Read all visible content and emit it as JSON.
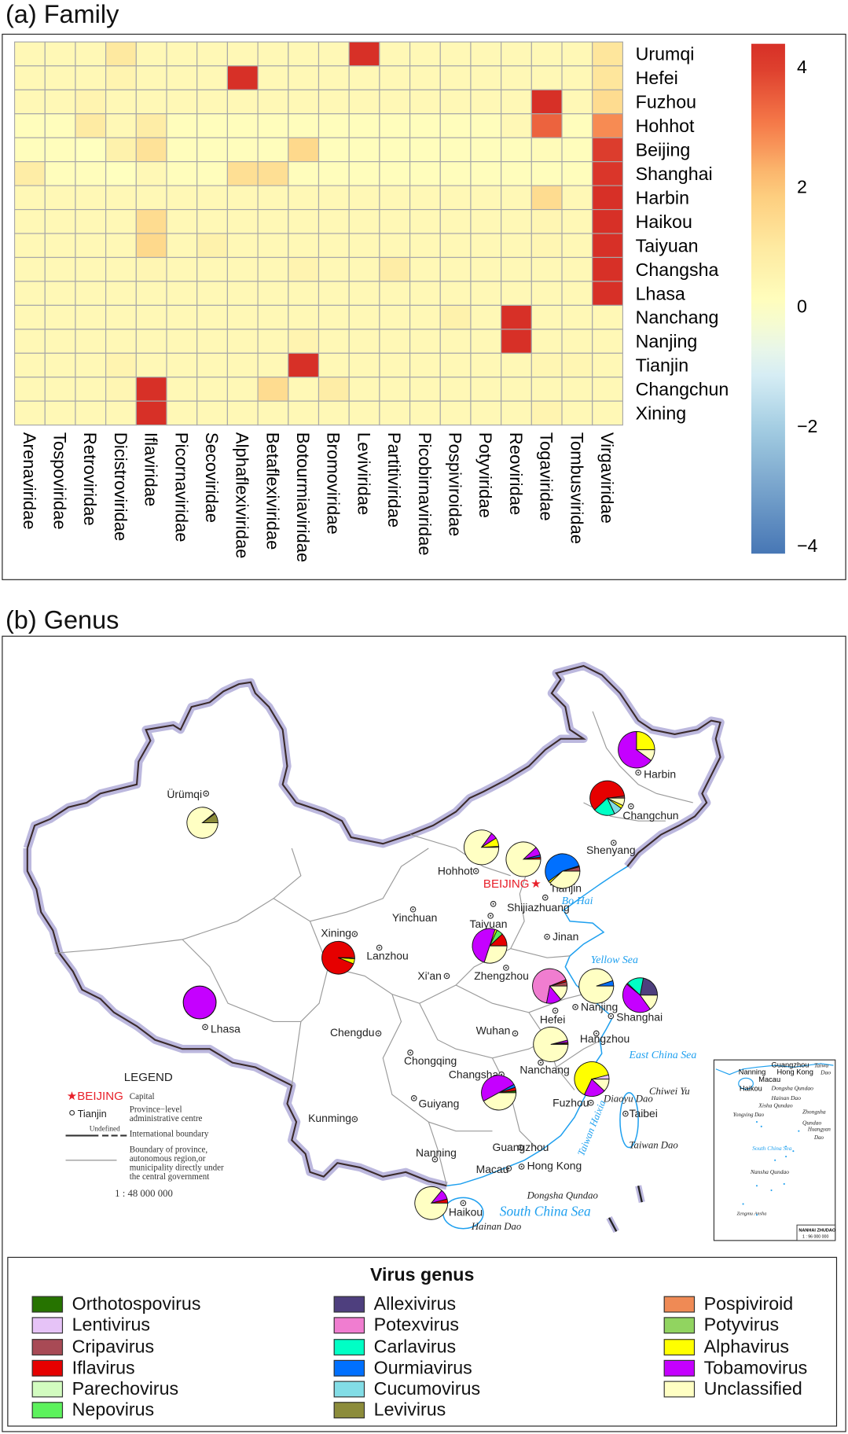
{
  "panel_a_title": "(a) Family",
  "panel_b_title": "(b) Genus",
  "chart_data": [
    {
      "type": "heatmap",
      "title": "(a) Family",
      "rows": [
        "Urumqi",
        "Hefei",
        "Fuzhou",
        "Hohhot",
        "Beijing",
        "Shanghai",
        "Harbin",
        "Haikou",
        "Taiyuan",
        "Changsha",
        "Lhasa",
        "Nanchang",
        "Nanjing",
        "Tianjin",
        "Changchun",
        "Xining"
      ],
      "columns": [
        "Arenaviridae",
        "Tospoviridae",
        "Retroviridae",
        "Dicistroviridae",
        "Iflaviridae",
        "Picornaviridae",
        "Secoviridae",
        "Alphaflexiviridae",
        "Betaflexiviridae",
        "Botourmiaviridae",
        "Bromoviridae",
        "Leviviridae",
        "Partitiviridae",
        "Picobirnaviridae",
        "Pospiviroidae",
        "Potyviridae",
        "Reoviridae",
        "Togaviridae",
        "Tombusviridae",
        "Virgaviridae"
      ],
      "values": [
        [
          0.3,
          0.3,
          0.3,
          1.0,
          0.3,
          0.3,
          0.3,
          0.3,
          0.3,
          0.3,
          0.3,
          4.3,
          0.3,
          0.3,
          0.3,
          0.3,
          0.3,
          0.3,
          0.3,
          1.1
        ],
        [
          0.3,
          0.3,
          0.3,
          0.5,
          0.3,
          0.3,
          0.3,
          4.3,
          0.3,
          0.3,
          0.3,
          0.3,
          0.3,
          0.3,
          0.3,
          0.3,
          0.3,
          0.3,
          0.3,
          1.1
        ],
        [
          0.3,
          0.3,
          0.5,
          0.3,
          0.3,
          0.3,
          0.3,
          0.3,
          0.3,
          0.3,
          0.3,
          0.3,
          0.3,
          0.3,
          0.3,
          0.3,
          0.3,
          4.3,
          0.3,
          1.4
        ],
        [
          0.1,
          0.1,
          0.9,
          0.3,
          0.8,
          0.1,
          0.1,
          0.1,
          0.1,
          0.1,
          0.1,
          0.1,
          0.1,
          0.1,
          0.1,
          0.1,
          0.3,
          3.4,
          0.1,
          2.8
        ],
        [
          0.1,
          0.1,
          0.0,
          0.6,
          1.2,
          0.1,
          0.1,
          0.1,
          0.1,
          1.5,
          0.1,
          0.1,
          0.1,
          0.1,
          0.1,
          0.1,
          0.1,
          0.2,
          0.1,
          4.0
        ],
        [
          0.8,
          0.1,
          0.1,
          0.0,
          0.3,
          0.1,
          0.1,
          1.3,
          1.3,
          0.1,
          0.1,
          0.1,
          0.1,
          0.1,
          0.1,
          0.1,
          0.1,
          0.1,
          0.1,
          4.1
        ],
        [
          0.3,
          0.3,
          0.3,
          0.3,
          0.3,
          0.3,
          0.3,
          0.3,
          0.3,
          0.3,
          0.3,
          0.3,
          0.3,
          0.3,
          0.3,
          0.3,
          0.3,
          1.4,
          0.3,
          4.2
        ],
        [
          0.3,
          0.3,
          0.3,
          0.3,
          1.4,
          0.3,
          0.3,
          0.3,
          0.3,
          0.3,
          0.3,
          0.3,
          0.3,
          0.3,
          0.3,
          0.3,
          0.3,
          0.4,
          0.3,
          4.2
        ],
        [
          0.3,
          0.3,
          0.3,
          0.3,
          1.5,
          0.3,
          0.6,
          0.3,
          0.3,
          0.3,
          0.3,
          0.3,
          0.3,
          0.3,
          0.3,
          0.3,
          0.3,
          0.4,
          0.3,
          4.2
        ],
        [
          0.3,
          0.3,
          0.3,
          0.3,
          0.4,
          0.3,
          0.3,
          0.3,
          0.3,
          0.5,
          0.3,
          0.3,
          0.8,
          0.3,
          0.3,
          0.3,
          0.3,
          0.3,
          0.3,
          4.3
        ],
        [
          0.3,
          0.3,
          0.3,
          0.3,
          0.3,
          0.3,
          0.3,
          0.3,
          0.3,
          0.3,
          0.3,
          0.3,
          0.3,
          0.3,
          0.3,
          0.3,
          0.3,
          0.3,
          0.3,
          4.3
        ],
        [
          0.3,
          0.3,
          0.3,
          0.3,
          0.3,
          0.3,
          0.3,
          0.3,
          0.3,
          0.3,
          0.3,
          0.3,
          0.3,
          0.3,
          0.6,
          0.3,
          4.3,
          0.3,
          0.3,
          0.3
        ],
        [
          0.3,
          0.3,
          0.3,
          0.3,
          0.3,
          0.3,
          0.3,
          0.3,
          0.3,
          0.5,
          0.3,
          0.3,
          0.3,
          0.3,
          0.3,
          0.3,
          4.3,
          0.3,
          0.3,
          0.3
        ],
        [
          0.3,
          0.3,
          0.3,
          0.5,
          0.3,
          0.3,
          0.3,
          0.3,
          0.3,
          4.3,
          0.3,
          0.3,
          0.3,
          0.3,
          0.3,
          0.3,
          0.3,
          0.4,
          0.4,
          0.3
        ],
        [
          0.3,
          0.3,
          0.3,
          0.4,
          4.2,
          0.3,
          0.3,
          0.3,
          1.4,
          0.3,
          0.8,
          0.3,
          0.3,
          0.3,
          0.3,
          0.3,
          0.3,
          0.3,
          0.3,
          0.3
        ],
        [
          0.3,
          0.3,
          0.3,
          0.3,
          4.3,
          0.3,
          0.3,
          0.3,
          0.3,
          0.3,
          0.3,
          0.3,
          0.3,
          0.3,
          0.3,
          0.3,
          0.3,
          0.5,
          0.3,
          0.3
        ]
      ],
      "colorbar": {
        "ticks": [
          4,
          2,
          0,
          -2,
          -4
        ],
        "tick_labels": [
          "4",
          "2",
          "0",
          "−2",
          "−4"
        ],
        "range": [
          -4.15,
          4.37
        ],
        "palette": "RdYlBu (reversed)",
        "low_color": "#4575b4",
        "mid_color": "#ffffbf",
        "high_color": "#d73027"
      },
      "grid": true
    },
    {
      "type": "pie",
      "title": "(b) Genus",
      "legend_title": "Virus genus",
      "legend_placement": "bottom",
      "genera": [
        {
          "name": "Orthotospovirus",
          "color": "#267300"
        },
        {
          "name": "Lentivirus",
          "color": "#e6c3f7"
        },
        {
          "name": "Cripavirus",
          "color": "#a84a55"
        },
        {
          "name": "Iflavirus",
          "color": "#e60000"
        },
        {
          "name": "Parechovirus",
          "color": "#d2fcc0"
        },
        {
          "name": "Nepovirus",
          "color": "#5cf25c"
        },
        {
          "name": "Allexivirus",
          "color": "#4e3f7e"
        },
        {
          "name": "Potexvirus",
          "color": "#f07dd0"
        },
        {
          "name": "Carlavirus",
          "color": "#00ffc5"
        },
        {
          "name": "Ourmiavirus",
          "color": "#0070ff"
        },
        {
          "name": "Cucumovirus",
          "color": "#82dde6"
        },
        {
          "name": "Levivirus",
          "color": "#8c8c3a"
        },
        {
          "name": "Pospiviroid",
          "color": "#ef8a55"
        },
        {
          "name": "Potyvirus",
          "color": "#91d460"
        },
        {
          "name": "Alphavirus",
          "color": "#ffff00"
        },
        {
          "name": "Tobamovirus",
          "color": "#c500ff"
        },
        {
          "name": "Unclassified",
          "color": "#ffffc3"
        }
      ],
      "pies": [
        {
          "city": "Urumqi",
          "values": {
            "Levivirus": 10,
            "Tobamovirus": 1,
            "Unclassified": 89
          }
        },
        {
          "city": "Harbin",
          "values": {
            "Alphavirus": 25,
            "Tobamovirus": 65,
            "Unclassified": 10
          }
        },
        {
          "city": "Changchun",
          "values": {
            "Cripavirus": 2,
            "Iflavirus": 60,
            "Carlavirus": 20,
            "Cucumovirus": 8,
            "Alphavirus": 3,
            "Unclassified": 7
          }
        },
        {
          "city": "Hohhot",
          "values": {
            "Lentivirus": 1,
            "Alphavirus": 8,
            "Tobamovirus": 6,
            "Unclassified": 85
          }
        },
        {
          "city": "Beijing",
          "values": {
            "Iflavirus": 2,
            "Ourmiavirus": 2,
            "Tobamovirus": 8,
            "Unclassified": 88
          }
        },
        {
          "city": "Tianjin",
          "values": {
            "Cripavirus": 4,
            "Iflavirus": 1,
            "Ourmiavirus": 55,
            "Alphavirus": 2,
            "Unclassified": 38
          }
        },
        {
          "city": "Xining",
          "values": {
            "Iflavirus": 94,
            "Alphavirus": 5,
            "Unclassified": 1
          }
        },
        {
          "city": "Taiyuan",
          "values": {
            "Iflavirus": 12,
            "Nepovirus": 6,
            "Alphavirus": 2,
            "Tobamovirus": 50,
            "Unclassified": 30
          }
        },
        {
          "city": "Hefei",
          "values": {
            "Cripavirus": 4,
            "Iflavirus": 2,
            "Potexvirus": 66,
            "Tobamovirus": 14,
            "Unclassified": 14
          }
        },
        {
          "city": "Nanjing",
          "values": {
            "Ourmiavirus": 5,
            "Unclassified": 95
          }
        },
        {
          "city": "Shanghai",
          "values": {
            "Allexivirus": 22,
            "Carlavirus": 16,
            "Potyvirus": 1,
            "Tobamovirus": 46,
            "Unclassified": 15
          }
        },
        {
          "city": "Lhasa",
          "values": {
            "Tobamovirus": 100
          }
        },
        {
          "city": "Nanchang",
          "values": {
            "Iflavirus": 1,
            "Pospiviroid": 1,
            "Tobamovirus": 2,
            "Unclassified": 96
          }
        },
        {
          "city": "Changsha",
          "values": {
            "Orthotospovirus": 2,
            "Iflavirus": 3,
            "Ourmiavirus": 3,
            "Tobamovirus": 50,
            "Unclassified": 42
          }
        },
        {
          "city": "Fuzhou",
          "values": {
            "Lentivirus": 4,
            "Alphavirus": 64,
            "Tobamovirus": 20,
            "Unclassified": 12
          }
        },
        {
          "city": "Haikou",
          "values": {
            "Iflavirus": 4,
            "Tobamovirus": 10,
            "Unclassified": 86
          }
        }
      ]
    }
  ],
  "map": {
    "places": [
      "Ürümqi",
      "Harbin",
      "Changchun",
      "Shenyang",
      "Hohhot",
      "BEIJING",
      "Tianjin",
      "Bo Hai",
      "Shijiazhuang",
      "Yinchuan",
      "Taiyuan",
      "Jinan",
      "Xining",
      "Lanzhou",
      "Yellow  Sea",
      "Xi'an",
      "Zhengzhou",
      "Hefei",
      "Nanjing",
      "Shanghai",
      "Lhasa",
      "Chengdu",
      "Wuhan",
      "Hangzhou",
      "East China Sea",
      "Chongqing",
      "Changsha",
      "Nanchang",
      "Fuzhou",
      "Diaoyu Dao",
      "Chiwei Yu",
      "Taibei",
      "Guiyang",
      "Kunming",
      "Taiwan Haixia",
      "Taiwan Dao",
      "Nanning",
      "Guangzhou",
      "Macau",
      "Hong Kong",
      "Dongsha Qundao",
      "Haikou",
      "South  China  Sea",
      "Hainan Dao"
    ],
    "legend": {
      "title": "LEGEND",
      "capital_sample": "★BEIJING",
      "capital_label": "Capital",
      "centre_sample": "Tianjin",
      "centre_label_1": "Province−level",
      "centre_label_2": "administrative centre",
      "undefined": "Undefined",
      "intl_label": "International boundary",
      "prov_label_1": "Boundary of province,",
      "prov_label_2": "autonomous region,or",
      "prov_label_3": "municipality directly under",
      "prov_label_4": "the central government",
      "scale": "1 : 48 000 000"
    },
    "inset": {
      "labels": [
        "Nanning",
        "Guangzhou",
        "Hong Kong",
        "Macau",
        "Taiwa",
        "Dao",
        "Haikou",
        "Dongsha Qundao",
        "Hainan Dao",
        "Xisha Qundao",
        "Yongxing Dao",
        "Zhongsha",
        "Qundao",
        "Huangyan",
        "Dao",
        "South  China  Sea",
        "Nansha Qundao",
        "Zengmu Ansha"
      ],
      "title": "NANHAI ZHUDAO",
      "scale": "1 : 96 000 000"
    }
  }
}
